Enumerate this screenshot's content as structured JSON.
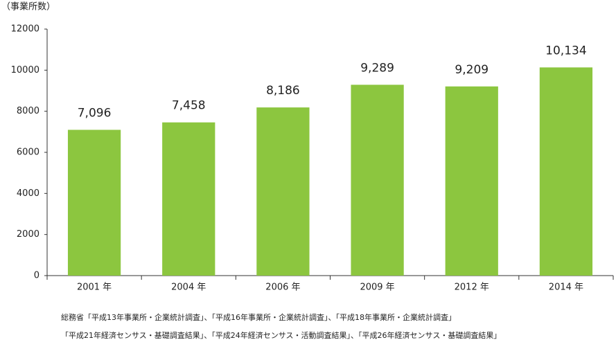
{
  "chart_data": {
    "type": "bar",
    "y_label": "（事業所数）",
    "categories": [
      "2001 年",
      "2004 年",
      "2006 年",
      "2009 年",
      "2012 年",
      "2014 年"
    ],
    "values": [
      7096,
      7458,
      8186,
      9289,
      9209,
      10134
    ],
    "value_labels": [
      "7,096",
      "7,458",
      "8,186",
      "9,289",
      "9,209",
      "10,134"
    ],
    "color": "#8cc63f",
    "ylim": [
      0,
      12000
    ],
    "yticks": [
      0,
      2000,
      4000,
      6000,
      8000,
      10000,
      12000
    ],
    "grid": false,
    "notes": [
      "総務省「平成13年事業所・企業統計調査」、「平成16年事業所・企業統計調査」、「平成18年事業所・企業統計調査」",
      "「平成21年経済センサス・基礎調査結果」、「平成24年経済センサス・活動調査結果」、「平成26年経済センサス・基礎調査結果」"
    ]
  }
}
